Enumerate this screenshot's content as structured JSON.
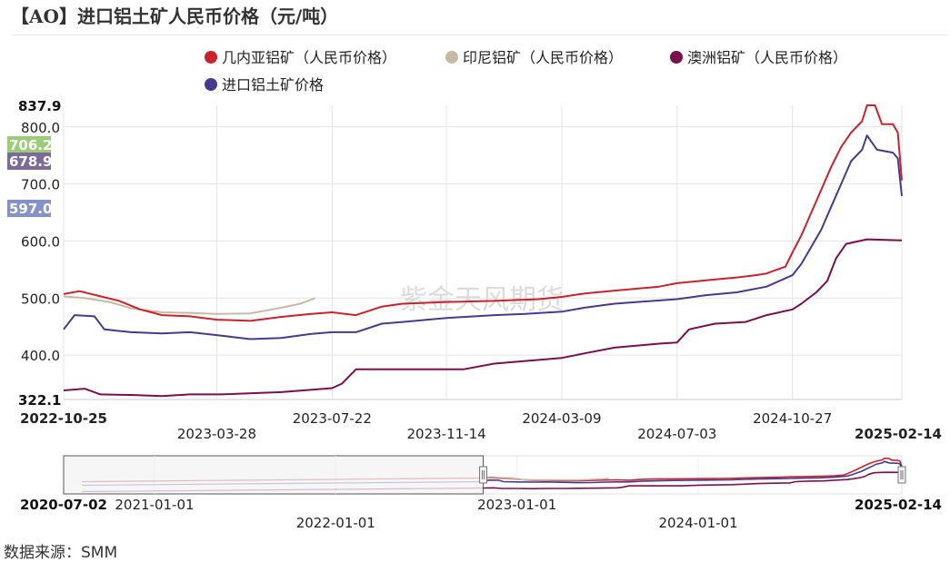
{
  "title": "【AO】进口铝土矿人民币价格（元/吨）",
  "source": "数据来源：SMM",
  "watermark": "紫金天风期货",
  "chart_data": {
    "type": "line",
    "title": "【AO】进口铝土矿人民币价格（元/吨）",
    "xlabel": "",
    "ylabel": "",
    "ylim": [
      322.1,
      837.9
    ],
    "xlim": [
      "2022-10-25",
      "2025-02-14"
    ],
    "grid": true,
    "legend_position": "top",
    "y_ticks": [
      400.0,
      500.0,
      600.0,
      700.0,
      800.0
    ],
    "y_tick_labels": [
      "400.0",
      "500.0",
      "600.0",
      "700.0",
      "800.0"
    ],
    "y_extreme_labels": {
      "max": "837.9",
      "min": "322.1"
    },
    "x_ticks": [
      "2022-10-25",
      "2023-03-28",
      "2023-07-22",
      "2023-11-14",
      "2024-03-09",
      "2024-07-03",
      "2024-10-27",
      "2025-02-14"
    ],
    "series": [
      {
        "name": "几内亚铝矿（人民币价格）",
        "color": "#c8232c",
        "last_label": "706.2",
        "label_color": "#9ccc7a",
        "points": [
          [
            "2022-10-25",
            507
          ],
          [
            "2022-11-10",
            512
          ],
          [
            "2022-12-01",
            503
          ],
          [
            "2022-12-20",
            495
          ],
          [
            "2023-01-10",
            480
          ],
          [
            "2023-02-01",
            470
          ],
          [
            "2023-03-01",
            468
          ],
          [
            "2023-03-28",
            462
          ],
          [
            "2023-05-01",
            460
          ],
          [
            "2023-06-01",
            467
          ],
          [
            "2023-07-01",
            472
          ],
          [
            "2023-07-22",
            475
          ],
          [
            "2023-08-15",
            470
          ],
          [
            "2023-09-10",
            485
          ],
          [
            "2023-10-01",
            490
          ],
          [
            "2023-11-14",
            493
          ],
          [
            "2024-01-01",
            495
          ],
          [
            "2024-02-15",
            498
          ],
          [
            "2024-03-09",
            502
          ],
          [
            "2024-04-01",
            508
          ],
          [
            "2024-05-01",
            513
          ],
          [
            "2024-06-15",
            520
          ],
          [
            "2024-07-03",
            526
          ],
          [
            "2024-08-01",
            531
          ],
          [
            "2024-09-01",
            536
          ],
          [
            "2024-09-20",
            540
          ],
          [
            "2024-10-01",
            543
          ],
          [
            "2024-10-10",
            549
          ],
          [
            "2024-10-20",
            555
          ],
          [
            "2024-10-27",
            580
          ],
          [
            "2024-11-05",
            610
          ],
          [
            "2024-11-15",
            650
          ],
          [
            "2024-11-25",
            690
          ],
          [
            "2024-12-05",
            730
          ],
          [
            "2024-12-15",
            765
          ],
          [
            "2024-12-25",
            790
          ],
          [
            "2025-01-05",
            810
          ],
          [
            "2025-01-10",
            837.9
          ],
          [
            "2025-01-18",
            837.9
          ],
          [
            "2025-01-25",
            805
          ],
          [
            "2025-02-05",
            805
          ],
          [
            "2025-02-10",
            790
          ],
          [
            "2025-02-14",
            706.2
          ]
        ]
      },
      {
        "name": "印尼铝矿（人民币价格）",
        "color": "#c8b9a6",
        "last_label": "",
        "label_color": "",
        "points": [
          [
            "2022-10-25",
            503
          ],
          [
            "2022-11-15",
            500
          ],
          [
            "2022-12-10",
            493
          ],
          [
            "2023-01-01",
            482
          ],
          [
            "2023-02-01",
            475
          ],
          [
            "2023-03-01",
            474
          ],
          [
            "2023-03-28",
            472
          ],
          [
            "2023-05-01",
            473
          ],
          [
            "2023-06-01",
            483
          ],
          [
            "2023-06-20",
            490
          ],
          [
            "2023-07-01",
            497
          ],
          [
            "2023-07-05",
            500
          ]
        ]
      },
      {
        "name": "澳洲铝矿（人民币价格）",
        "color": "#7a0f4f",
        "last_label": "",
        "label_color": "",
        "points": [
          [
            "2022-10-25",
            338
          ],
          [
            "2022-11-15",
            341
          ],
          [
            "2022-12-01",
            331
          ],
          [
            "2023-01-01",
            330
          ],
          [
            "2023-02-01",
            328
          ],
          [
            "2023-03-01",
            331
          ],
          [
            "2023-04-01",
            331
          ],
          [
            "2023-06-01",
            335
          ],
          [
            "2023-07-22",
            342
          ],
          [
            "2023-08-01",
            350
          ],
          [
            "2023-08-15",
            375
          ],
          [
            "2023-10-01",
            375
          ],
          [
            "2023-11-14",
            375
          ],
          [
            "2023-12-01",
            375
          ],
          [
            "2024-01-01",
            385
          ],
          [
            "2024-03-09",
            395
          ],
          [
            "2024-04-01",
            403
          ],
          [
            "2024-05-01",
            413
          ],
          [
            "2024-06-15",
            420
          ],
          [
            "2024-07-03",
            422
          ],
          [
            "2024-07-15",
            445
          ],
          [
            "2024-08-10",
            455
          ],
          [
            "2024-09-10",
            458
          ],
          [
            "2024-10-01",
            470
          ],
          [
            "2024-10-27",
            480
          ],
          [
            "2024-11-05",
            490
          ],
          [
            "2024-11-20",
            510
          ],
          [
            "2024-12-01",
            530
          ],
          [
            "2024-12-10",
            570
          ],
          [
            "2024-12-20",
            595
          ],
          [
            "2025-01-10",
            603
          ],
          [
            "2025-02-14",
            601
          ]
        ]
      },
      {
        "name": "进口铝土矿价格",
        "color": "#453a8e",
        "last_label": "678.9",
        "label_color": "#7b6b9b",
        "points": [
          [
            "2022-10-25",
            445
          ],
          [
            "2022-11-05",
            470
          ],
          [
            "2022-11-25",
            468
          ],
          [
            "2022-12-05",
            445
          ],
          [
            "2023-01-01",
            440
          ],
          [
            "2023-02-01",
            438
          ],
          [
            "2023-03-01",
            440
          ],
          [
            "2023-03-28",
            435
          ],
          [
            "2023-05-01",
            428
          ],
          [
            "2023-06-01",
            430
          ],
          [
            "2023-07-01",
            437
          ],
          [
            "2023-07-22",
            440
          ],
          [
            "2023-08-15",
            440
          ],
          [
            "2023-09-10",
            455
          ],
          [
            "2023-10-01",
            458
          ],
          [
            "2023-11-14",
            465
          ],
          [
            "2024-01-01",
            470
          ],
          [
            "2024-02-01",
            472
          ],
          [
            "2024-03-09",
            476
          ],
          [
            "2024-04-01",
            483
          ],
          [
            "2024-05-01",
            490
          ],
          [
            "2024-06-01",
            494
          ],
          [
            "2024-07-03",
            498
          ],
          [
            "2024-08-01",
            505
          ],
          [
            "2024-09-01",
            510
          ],
          [
            "2024-10-01",
            520
          ],
          [
            "2024-10-27",
            540
          ],
          [
            "2024-11-05",
            560
          ],
          [
            "2024-11-15",
            590
          ],
          [
            "2024-11-25",
            620
          ],
          [
            "2024-12-05",
            660
          ],
          [
            "2024-12-15",
            700
          ],
          [
            "2024-12-25",
            740
          ],
          [
            "2025-01-05",
            760
          ],
          [
            "2025-01-10",
            785
          ],
          [
            "2025-01-20",
            760
          ],
          [
            "2025-02-05",
            755
          ],
          [
            "2025-02-10",
            745
          ],
          [
            "2025-02-14",
            678.9
          ]
        ]
      }
    ],
    "last_value_labels": [
      {
        "text": "706.2",
        "color": "#9ccc7a",
        "value": 706.2
      },
      {
        "text": "678.9",
        "color": "#7b6b9b",
        "value": 678.9
      },
      {
        "text": "597.0",
        "color": "#8592c9",
        "value": 597.0
      }
    ],
    "navigator": {
      "range": [
        "2020-07-02",
        "2025-02-14"
      ],
      "selected": [
        "2022-10-25",
        "2025-02-14"
      ],
      "tick_labels": [
        "2021-01-01",
        "2022-01-01",
        "2023-01-01",
        "2024-01-01"
      ],
      "edge_labels": [
        "2020-07-02",
        "2025-02-14"
      ]
    }
  }
}
